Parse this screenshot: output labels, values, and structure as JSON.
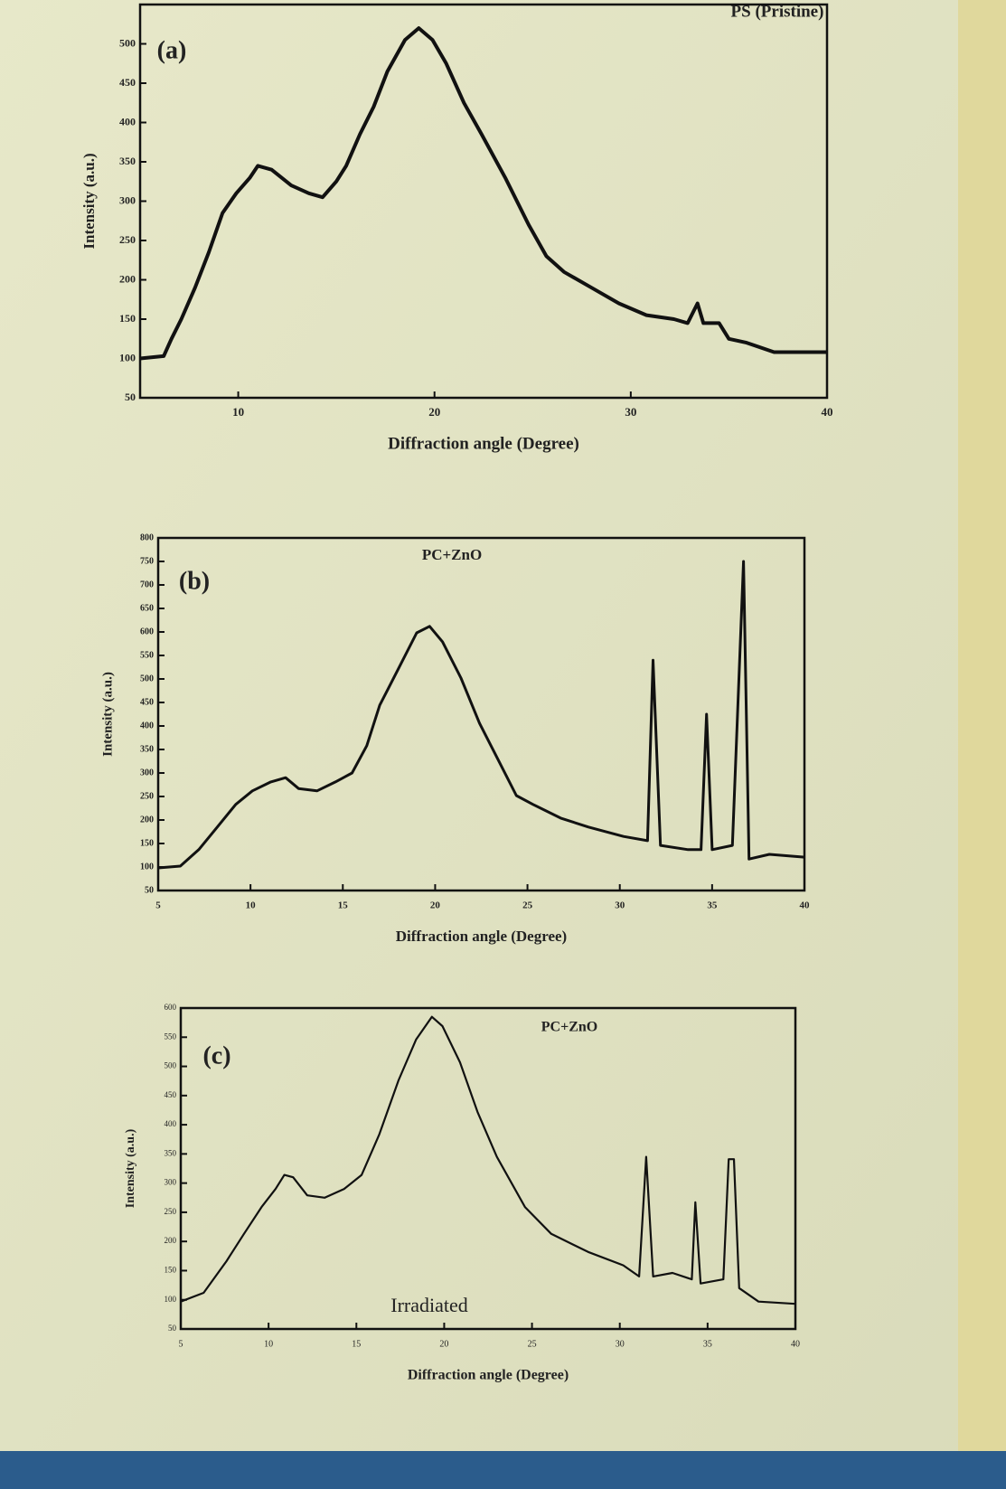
{
  "chart_data": [
    {
      "type": "line",
      "title": "PS (Pristine)",
      "panel_label": "(a)",
      "xlabel": "Diffraction angle  (Degree)",
      "ylabel": "Intensity (a.u.)",
      "xlim": [
        5,
        40
      ],
      "xticks": [
        10,
        20,
        30,
        40
      ],
      "ylim": [
        50,
        550
      ],
      "yticks": [
        50,
        100,
        150,
        200,
        250,
        300,
        350,
        400,
        450,
        500
      ],
      "color": "#111111",
      "x": [
        5,
        6.2,
        6.6,
        7.1,
        7.8,
        8.5,
        9.2,
        9.9,
        10.6,
        11.0,
        11.7,
        12.7,
        13.6,
        14.3,
        15.0,
        15.5,
        16.2,
        16.9,
        17.6,
        18.5,
        19.2,
        19.9,
        20.6,
        21.5,
        22.4,
        23.6,
        24.8,
        25.7,
        26.6,
        28.0,
        29.4,
        30.8,
        32.2,
        32.9,
        33.4,
        33.7,
        34.5,
        35.0,
        35.9,
        37.3,
        38.7,
        40
      ],
      "values": [
        100,
        103,
        125,
        150,
        190,
        235,
        285,
        310,
        330,
        345,
        340,
        320,
        310,
        305,
        325,
        345,
        385,
        420,
        465,
        505,
        520,
        505,
        475,
        425,
        385,
        330,
        270,
        230,
        210,
        190,
        170,
        155,
        150,
        145,
        170,
        145,
        145,
        125,
        120,
        108,
        108,
        108
      ]
    },
    {
      "type": "line",
      "title": "PC+ZnO",
      "panel_label": "(b)",
      "xlabel": "Diffraction angle  (Degree)",
      "ylabel": "Intensity (a.u.)",
      "xlim": [
        5,
        40
      ],
      "xticks": [
        5,
        10,
        15,
        20,
        25,
        30,
        35,
        40
      ],
      "ylim": [
        50,
        800
      ],
      "yticks": [
        50,
        100,
        150,
        200,
        250,
        300,
        350,
        400,
        450,
        500,
        550,
        600,
        650,
        700,
        750,
        800
      ],
      "color": "#111111",
      "x": [
        5,
        6.2,
        7.2,
        8.2,
        9.2,
        10.1,
        11.1,
        11.9,
        12.6,
        13.6,
        14.6,
        15.5,
        16.3,
        17.0,
        18.0,
        19.0,
        19.7,
        20.4,
        21.4,
        22.4,
        23.4,
        24.4,
        25.3,
        26.8,
        28.3,
        30.2,
        31.5,
        31.8,
        32.2,
        33.7,
        34.4,
        34.7,
        35.0,
        36.1,
        36.7,
        37.0,
        38.1,
        40
      ],
      "values": [
        98,
        102,
        137,
        185,
        233,
        262,
        281,
        290,
        267,
        262,
        281,
        300,
        358,
        444,
        521,
        598,
        612,
        579,
        502,
        406,
        329,
        252,
        233,
        204,
        185,
        165,
        156,
        540,
        146,
        137,
        137,
        425,
        137,
        146,
        750,
        117,
        127,
        121
      ]
    },
    {
      "type": "line",
      "title": "PC+ZnO",
      "panel_label": "(c)",
      "annotation": "Irradiated",
      "xlabel": "Diffraction angle  (Degree)",
      "ylabel": "Intensity (a.u.)",
      "xlim": [
        5,
        40
      ],
      "xticks": [
        5,
        10,
        15,
        20,
        25,
        30,
        35,
        40
      ],
      "ylim": [
        50,
        600
      ],
      "yticks": [
        50,
        100,
        150,
        200,
        250,
        300,
        350,
        400,
        450,
        500,
        550,
        600
      ],
      "color": "#111111",
      "x": [
        5,
        6.3,
        7.6,
        8.6,
        9.6,
        10.4,
        10.9,
        11.4,
        12.2,
        13.2,
        14.3,
        15.3,
        16.3,
        17.4,
        18.4,
        19.3,
        19.9,
        20.9,
        21.9,
        23.0,
        24.6,
        26.1,
        28.2,
        30.2,
        31.1,
        31.5,
        31.9,
        33.0,
        34.1,
        34.3,
        34.6,
        35.9,
        36.2,
        36.5,
        36.8,
        37.9,
        40
      ],
      "values": [
        97,
        112,
        166,
        213,
        259,
        290,
        314,
        310,
        279,
        275,
        290,
        314,
        383,
        476,
        546,
        585,
        569,
        507,
        422,
        345,
        259,
        213,
        182,
        159,
        140,
        345,
        140,
        146,
        135,
        267,
        128,
        135,
        341,
        341,
        120,
        97,
        93
      ]
    }
  ]
}
